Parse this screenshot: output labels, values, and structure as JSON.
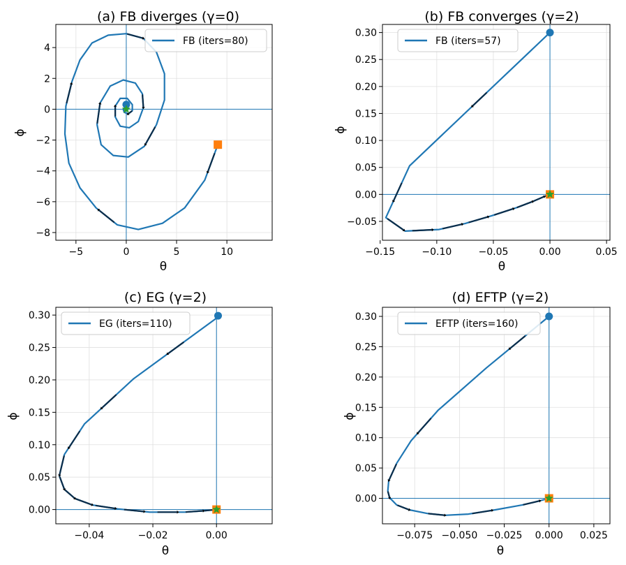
{
  "colors": {
    "trajectory": "#1f77b4",
    "start_marker": "#ff7f0e",
    "equilibrium_marker": "#1f77b4",
    "final_marker": "#2ca02c",
    "arrow": "#000000",
    "axes_lines": "#1f77b4",
    "grid": "#e0e0e0"
  },
  "chart_data": [
    {
      "type": "line",
      "title": "(a) FB diverges (γ=0)",
      "xlabel": "θ",
      "ylabel": "ϕ",
      "xlim": [
        -7,
        14.5
      ],
      "ylim": [
        -8.5,
        5.5
      ],
      "xticks": [
        -5,
        0,
        5,
        10
      ],
      "xtick_labels": [
        "−5",
        "0",
        "5",
        "10"
      ],
      "yticks": [
        -8,
        -6,
        -4,
        -2,
        0,
        2,
        4
      ],
      "ytick_labels": [
        "−8",
        "−6",
        "−4",
        "−2",
        "0",
        "2",
        "4"
      ],
      "grid": true,
      "legend_position": "top-right",
      "series": [
        {
          "name": "FB (iters=80)",
          "x": [
            9.1,
            7.8,
            5.8,
            3.6,
            1.2,
            -0.9,
            -3.0,
            -4.6,
            -5.7,
            -6.1,
            -6.0,
            -5.4,
            -4.6,
            -3.4,
            -1.8,
            0.0,
            1.7,
            3.0,
            3.8,
            3.8,
            3.0,
            1.8,
            0.2,
            -1.3,
            -2.5,
            -2.9,
            -2.6,
            -1.6,
            -0.3,
            0.9,
            1.6,
            1.7,
            1.2,
            0.3,
            -0.6,
            -1.1,
            -1.1,
            -0.6,
            0.1,
            0.6,
            0.6,
            0.2,
            -0.2,
            -0.3,
            -0.1,
            0.0
          ],
          "y": [
            -2.3,
            -4.6,
            -6.4,
            -7.4,
            -7.8,
            -7.5,
            -6.4,
            -5.1,
            -3.5,
            -1.6,
            0.2,
            1.8,
            3.2,
            4.3,
            4.8,
            4.9,
            4.6,
            3.7,
            2.3,
            0.6,
            -1.0,
            -2.4,
            -3.1,
            -3.0,
            -2.3,
            -1.0,
            0.4,
            1.5,
            1.9,
            1.7,
            1.0,
            0.1,
            -0.8,
            -1.2,
            -1.1,
            -0.5,
            0.2,
            0.7,
            0.7,
            0.3,
            -0.1,
            -0.3,
            -0.2,
            0.0,
            0.1,
            0.0
          ]
        }
      ],
      "start_point": [
        9.1,
        -2.3
      ],
      "equilibrium_point": [
        0.0,
        0.3
      ],
      "end_point": [
        0.0,
        0.0
      ]
    },
    {
      "type": "line",
      "title": "(b) FB converges (γ=2)",
      "xlabel": "θ",
      "ylabel": "ϕ",
      "xlim": [
        -0.148,
        0.053
      ],
      "ylim": [
        -0.085,
        0.315
      ],
      "xticks": [
        -0.15,
        -0.1,
        -0.05,
        0.0,
        0.05
      ],
      "xtick_labels": [
        "−0.15",
        "−0.10",
        "−0.05",
        "0.00",
        "0.05"
      ],
      "yticks": [
        -0.05,
        0.0,
        0.05,
        0.1,
        0.15,
        0.2,
        0.25,
        0.3
      ],
      "ytick_labels": [
        "−0.05",
        "0.00",
        "0.05",
        "0.10",
        "0.15",
        "0.20",
        "0.25",
        "0.30"
      ],
      "grid": true,
      "legend_position": "top-left",
      "series": [
        {
          "name": "FB (iters=57)",
          "x": [
            0.0,
            -0.124,
            -0.145,
            -0.128,
            -0.098,
            -0.075,
            -0.052,
            -0.03,
            -0.015,
            -0.005,
            0.0
          ],
          "y": [
            0.3,
            0.053,
            -0.043,
            -0.068,
            -0.065,
            -0.054,
            -0.04,
            -0.025,
            -0.013,
            -0.004,
            0.0
          ]
        }
      ],
      "start_point": [
        0.0,
        0.0
      ],
      "equilibrium_point": [
        0.0,
        0.3
      ],
      "end_point": [
        0.0,
        0.0
      ]
    },
    {
      "type": "line",
      "title": "(c) EG (γ=2)",
      "xlabel": "θ",
      "ylabel": "ϕ",
      "xlim": [
        -0.0505,
        0.0175
      ],
      "ylim": [
        -0.022,
        0.312
      ],
      "xticks": [
        -0.04,
        -0.02,
        0.0
      ],
      "xtick_labels": [
        "−0.04",
        "−0.02",
        "0.00"
      ],
      "yticks": [
        0.0,
        0.05,
        0.1,
        0.15,
        0.2,
        0.25,
        0.3
      ],
      "ytick_labels": [
        "0.00",
        "0.05",
        "0.10",
        "0.15",
        "0.20",
        "0.25",
        "0.30"
      ],
      "grid": true,
      "legend_position": "top-left",
      "series": [
        {
          "name": "EG (iters=110)",
          "x": [
            0.0005,
            -0.026,
            -0.0415,
            -0.0478,
            -0.0494,
            -0.0478,
            -0.0445,
            -0.039,
            -0.031,
            -0.021,
            -0.01,
            -0.004,
            0.0
          ],
          "y": [
            0.297,
            0.202,
            0.132,
            0.085,
            0.052,
            0.031,
            0.017,
            0.007,
            0.001,
            -0.004,
            -0.004,
            -0.002,
            0.0
          ]
        }
      ],
      "start_point": [
        0.0,
        0.0
      ],
      "equilibrium_point": [
        0.0005,
        0.299
      ],
      "end_point": [
        0.0,
        0.0
      ]
    },
    {
      "type": "line",
      "title": "(d) EFTP (γ=2)",
      "xlabel": "θ",
      "ylabel": "ϕ",
      "xlim": [
        -0.093,
        0.034
      ],
      "ylim": [
        -0.042,
        0.315
      ],
      "xticks": [
        -0.075,
        -0.05,
        -0.025,
        0.0,
        0.025
      ],
      "xtick_labels": [
        "−0.075",
        "−0.050",
        "−0.025",
        "0.000",
        "0.025"
      ],
      "yticks": [
        0.0,
        0.05,
        0.1,
        0.15,
        0.2,
        0.25,
        0.3
      ],
      "ytick_labels": [
        "0.00",
        "0.05",
        "0.10",
        "0.15",
        "0.20",
        "0.25",
        "0.30"
      ],
      "grid": true,
      "legend_position": "top-left",
      "series": [
        {
          "name": "EFTP (iters=160)",
          "x": [
            0.0,
            -0.035,
            -0.062,
            -0.077,
            -0.085,
            -0.0895,
            -0.09,
            -0.089,
            -0.085,
            -0.078,
            -0.068,
            -0.058,
            -0.045,
            -0.03,
            -0.015,
            -0.005,
            0.0
          ],
          "y": [
            0.3,
            0.215,
            0.145,
            0.095,
            0.058,
            0.029,
            0.012,
            0.001,
            -0.011,
            -0.019,
            -0.025,
            -0.028,
            -0.026,
            -0.019,
            -0.011,
            -0.004,
            0.0
          ]
        }
      ],
      "start_point": [
        0.0,
        0.0
      ],
      "equilibrium_point": [
        0.0,
        0.3
      ],
      "end_point": [
        0.0,
        0.0
      ]
    }
  ]
}
